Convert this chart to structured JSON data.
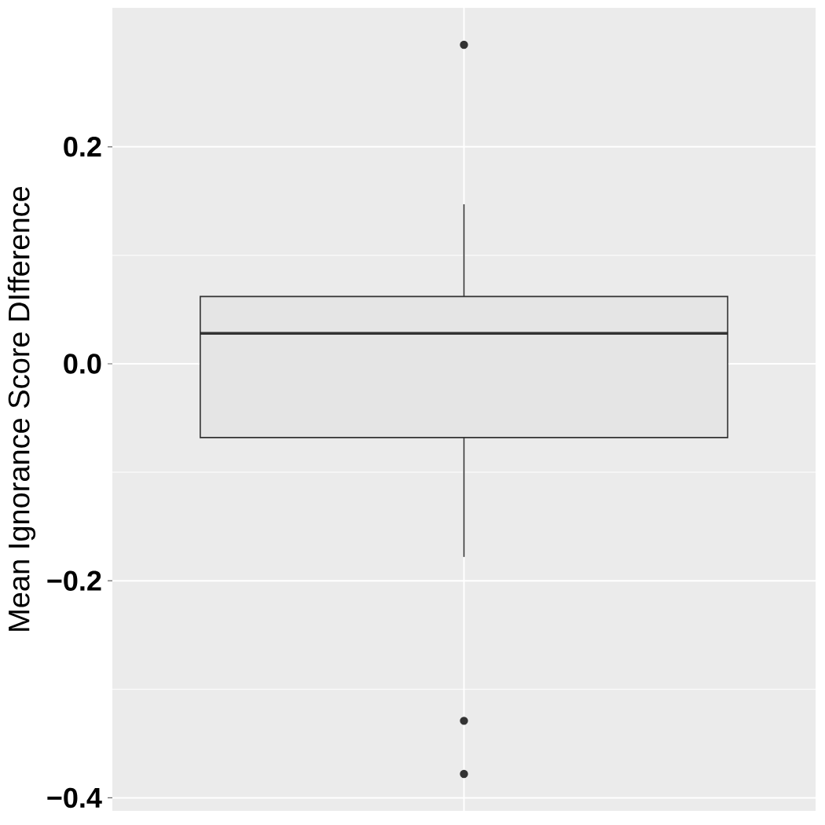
{
  "chart_data": {
    "type": "box",
    "ylabel": "Mean Ignorance Score DIfference",
    "categories": [
      null
    ],
    "boxes": [
      {
        "low": -0.178,
        "q1": -0.068,
        "median": 0.028,
        "q3": 0.062,
        "high": 0.147,
        "outliers": [
          0.294,
          -0.329,
          -0.378
        ]
      }
    ],
    "color": "#333333",
    "ylim": [
      -0.412,
      0.328
    ],
    "yticks": [
      {
        "value": -0.4,
        "label": "−0.4"
      },
      {
        "value": -0.2,
        "label": "−0.2"
      },
      {
        "value": 0,
        "label": "0.0"
      },
      {
        "value": 0.2,
        "label": "0.2"
      }
    ],
    "grid": true,
    "tick_labels": "y",
    "marker": "circle"
  }
}
